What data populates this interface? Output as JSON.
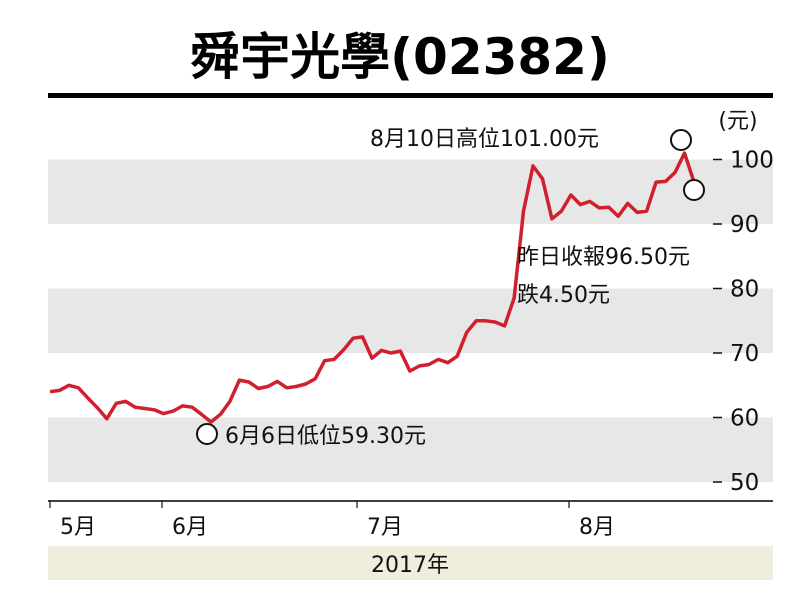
{
  "title": "舜宇光學(02382)",
  "unit": "(元)",
  "year_label": "2017年",
  "colors": {
    "line": "#d0202e",
    "band": "#e7e7e7",
    "footer": "#efeedd",
    "text": "#111111"
  },
  "chart_data": {
    "type": "line",
    "y_ticks": [
      50,
      60,
      70,
      80,
      90,
      100
    ],
    "ylim": [
      48,
      105
    ],
    "grid": "alternating horizontal bands",
    "x_labels": [
      "5月",
      "6月",
      "7月",
      "8月"
    ],
    "annotations": {
      "high": "8月10日高位101.00元",
      "low": "6月6日低位59.30元",
      "close_line1": "昨日收報96.50元",
      "close_line2": "跌4.50元"
    },
    "series": [
      {
        "values": [
          64.0,
          64.2,
          65.0,
          64.6,
          63.0,
          61.5,
          59.8,
          62.2,
          62.5,
          61.6,
          61.4,
          61.2,
          60.6,
          61.0,
          61.8,
          61.6,
          60.5,
          59.3,
          60.5,
          62.5,
          65.8,
          65.5,
          64.5,
          64.8,
          65.6,
          64.6,
          64.8,
          65.2,
          66.0,
          68.8,
          69.0,
          70.5,
          72.3,
          72.5,
          69.2,
          70.4,
          70.0,
          70.3,
          67.2,
          68.0,
          68.2,
          69.0,
          68.5,
          69.5,
          73.2,
          75.0,
          75.0,
          74.8,
          74.2,
          78.5,
          92.0,
          99.0,
          97.0,
          90.8,
          92.0,
          94.5,
          93.0,
          93.5,
          92.5,
          92.6,
          91.2,
          93.2,
          91.8,
          92.0,
          96.5,
          96.6,
          98.0,
          101.0,
          96.5
        ]
      }
    ]
  }
}
